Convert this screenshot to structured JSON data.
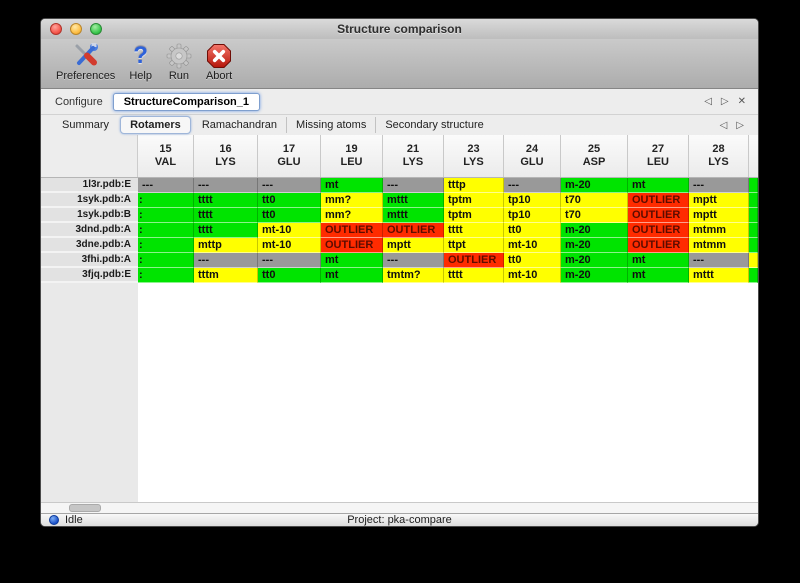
{
  "window": {
    "title": "Structure comparison"
  },
  "toolbar": {
    "items": [
      {
        "label": "Preferences",
        "icon": "tools-icon"
      },
      {
        "label": "Help",
        "icon": "help-icon"
      },
      {
        "label": "Run",
        "icon": "gear-icon"
      },
      {
        "label": "Abort",
        "icon": "abort-icon"
      }
    ]
  },
  "configure": {
    "label": "Configure",
    "value": "StructureComparison_1"
  },
  "icons": {
    "back": "◁",
    "forward": "▷",
    "close": "✕",
    "help_glyph": "?"
  },
  "tabs": {
    "items": [
      "Summary",
      "Rotamers",
      "Ramachandran",
      "Missing atoms",
      "Secondary structure"
    ],
    "selected": "Rotamers"
  },
  "table": {
    "columns": [
      {
        "num": "15",
        "res": "VAL"
      },
      {
        "num": "16",
        "res": "LYS"
      },
      {
        "num": "17",
        "res": "GLU"
      },
      {
        "num": "19",
        "res": "LEU"
      },
      {
        "num": "21",
        "res": "LYS"
      },
      {
        "num": "23",
        "res": "LYS"
      },
      {
        "num": "24",
        "res": "GLU"
      },
      {
        "num": "25",
        "res": "ASP"
      },
      {
        "num": "27",
        "res": "LEU"
      },
      {
        "num": "28",
        "res": "LYS"
      }
    ],
    "rows": [
      {
        "label": "1l3r.pdb:E",
        "cells": [
          {
            "t": "---",
            "c": "gray"
          },
          {
            "t": "---",
            "c": "gray"
          },
          {
            "t": "---",
            "c": "gray"
          },
          {
            "t": "mt",
            "c": "green"
          },
          {
            "t": "---",
            "c": "gray"
          },
          {
            "t": "tttp",
            "c": "yellow"
          },
          {
            "t": "---",
            "c": "gray"
          },
          {
            "t": "m-20",
            "c": "green"
          },
          {
            "t": "mt",
            "c": "green"
          },
          {
            "t": "---",
            "c": "gray"
          },
          {
            "t": "",
            "c": "green"
          }
        ]
      },
      {
        "label": "1syk.pdb:A",
        "cells": [
          {
            "t": ":",
            "c": "green"
          },
          {
            "t": "tttt",
            "c": "green"
          },
          {
            "t": "tt0",
            "c": "green"
          },
          {
            "t": "mm?",
            "c": "yellow"
          },
          {
            "t": "mttt",
            "c": "green"
          },
          {
            "t": "tptm",
            "c": "yellow"
          },
          {
            "t": "tp10",
            "c": "yellow"
          },
          {
            "t": "t70",
            "c": "yellow"
          },
          {
            "t": "OUTLIER",
            "c": "red"
          },
          {
            "t": "mptt",
            "c": "yellow"
          },
          {
            "t": "",
            "c": "green"
          }
        ]
      },
      {
        "label": "1syk.pdb:B",
        "cells": [
          {
            "t": ":",
            "c": "green"
          },
          {
            "t": "tttt",
            "c": "green"
          },
          {
            "t": "tt0",
            "c": "green"
          },
          {
            "t": "mm?",
            "c": "yellow"
          },
          {
            "t": "mttt",
            "c": "green"
          },
          {
            "t": "tptm",
            "c": "yellow"
          },
          {
            "t": "tp10",
            "c": "yellow"
          },
          {
            "t": "t70",
            "c": "yellow"
          },
          {
            "t": "OUTLIER",
            "c": "red"
          },
          {
            "t": "mptt",
            "c": "yellow"
          },
          {
            "t": "",
            "c": "green"
          }
        ]
      },
      {
        "label": "3dnd.pdb:A",
        "cells": [
          {
            "t": ":",
            "c": "green"
          },
          {
            "t": "tttt",
            "c": "green"
          },
          {
            "t": "mt-10",
            "c": "yellow"
          },
          {
            "t": "OUTLIER",
            "c": "red"
          },
          {
            "t": "OUTLIER",
            "c": "red"
          },
          {
            "t": "tttt",
            "c": "yellow"
          },
          {
            "t": "tt0",
            "c": "yellow"
          },
          {
            "t": "m-20",
            "c": "green"
          },
          {
            "t": "OUTLIER",
            "c": "red"
          },
          {
            "t": "mtmm",
            "c": "yellow"
          },
          {
            "t": "",
            "c": "green"
          }
        ]
      },
      {
        "label": "3dne.pdb:A",
        "cells": [
          {
            "t": ":",
            "c": "green"
          },
          {
            "t": "mttp",
            "c": "yellow"
          },
          {
            "t": "mt-10",
            "c": "yellow"
          },
          {
            "t": "OUTLIER",
            "c": "red"
          },
          {
            "t": "mptt",
            "c": "yellow"
          },
          {
            "t": "ttpt",
            "c": "yellow"
          },
          {
            "t": "mt-10",
            "c": "yellow"
          },
          {
            "t": "m-20",
            "c": "green"
          },
          {
            "t": "OUTLIER",
            "c": "red"
          },
          {
            "t": "mtmm",
            "c": "yellow"
          },
          {
            "t": "",
            "c": "green"
          }
        ]
      },
      {
        "label": "3fhi.pdb:A",
        "cells": [
          {
            "t": ":",
            "c": "green"
          },
          {
            "t": "---",
            "c": "gray"
          },
          {
            "t": "---",
            "c": "gray"
          },
          {
            "t": "mt",
            "c": "green"
          },
          {
            "t": "---",
            "c": "gray"
          },
          {
            "t": "OUTLIER",
            "c": "red"
          },
          {
            "t": "tt0",
            "c": "yellow"
          },
          {
            "t": "m-20",
            "c": "green"
          },
          {
            "t": "mt",
            "c": "green"
          },
          {
            "t": "---",
            "c": "gray"
          },
          {
            "t": "",
            "c": "yellow"
          }
        ]
      },
      {
        "label": "3fjq.pdb:E",
        "cells": [
          {
            "t": ":",
            "c": "green"
          },
          {
            "t": "tttm",
            "c": "yellow"
          },
          {
            "t": "tt0",
            "c": "green"
          },
          {
            "t": "mt",
            "c": "green"
          },
          {
            "t": "tmtm?",
            "c": "yellow"
          },
          {
            "t": "tttt",
            "c": "yellow"
          },
          {
            "t": "mt-10",
            "c": "yellow"
          },
          {
            "t": "m-20",
            "c": "green"
          },
          {
            "t": "mt",
            "c": "green"
          },
          {
            "t": "mttt",
            "c": "yellow"
          },
          {
            "t": "",
            "c": "green"
          }
        ]
      }
    ]
  },
  "statusbar": {
    "status": "Idle",
    "project": "Project: pka-compare"
  },
  "colors": {
    "green": "#00e400",
    "yellow": "#ffff00",
    "red": "#ff2b00",
    "gray": "#999999",
    "accent_focus": "#7f9fce"
  }
}
